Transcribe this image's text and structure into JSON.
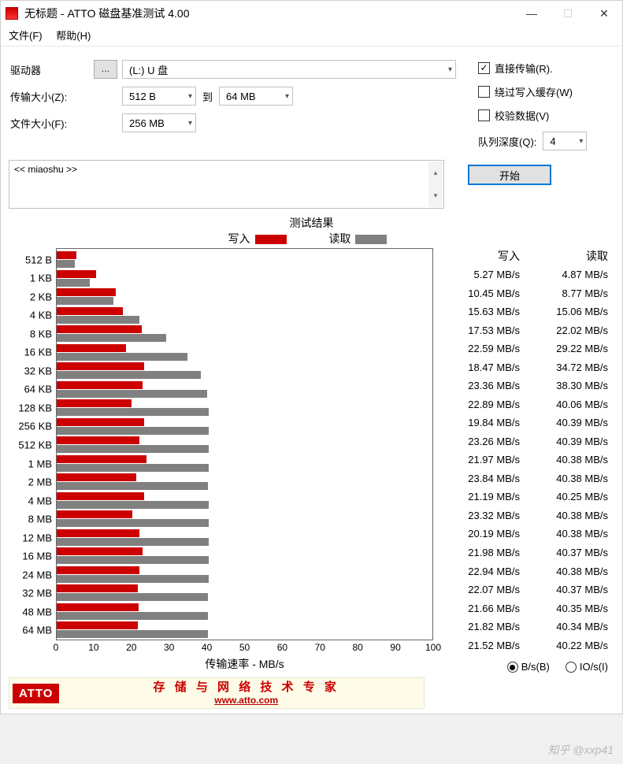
{
  "window": {
    "title": "无标题 - ATTO 磁盘基准测试 4.00"
  },
  "menu": {
    "file": "文件(F)",
    "help": "帮助(H)"
  },
  "form": {
    "drive_label": "驱动器",
    "drive_value": "(L:) U 盘",
    "transfer_label": "传输大小(Z):",
    "transfer_from": "512 B",
    "transfer_to_label": "到",
    "transfer_to": "64 MB",
    "filesize_label": "文件大小(F):",
    "filesize_value": "256 MB",
    "direct_io": "直接传输(R).",
    "bypass_cache": "绕过写入缓存(W)",
    "verify": "校验数据(V)",
    "queue_label": "队列深度(Q):",
    "queue_value": "4",
    "description": "<< miaoshu >>",
    "start_btn": "开始"
  },
  "chart": {
    "title": "测试结果",
    "legend_write": "写入",
    "legend_read": "读取",
    "write_color": "#CC0000",
    "read_color": "#808080",
    "x_label": "传输速率 - MB/s",
    "x_max": 100,
    "x_ticks": [
      0,
      10,
      20,
      30,
      40,
      50,
      60,
      70,
      80,
      90,
      100
    ],
    "rows": [
      {
        "label": "512 B",
        "write": 5.27,
        "read": 4.87
      },
      {
        "label": "1 KB",
        "write": 10.45,
        "read": 8.77
      },
      {
        "label": "2 KB",
        "write": 15.63,
        "read": 15.06
      },
      {
        "label": "4 KB",
        "write": 17.53,
        "read": 22.02
      },
      {
        "label": "8 KB",
        "write": 22.59,
        "read": 29.22
      },
      {
        "label": "16 KB",
        "write": 18.47,
        "read": 34.72
      },
      {
        "label": "32 KB",
        "write": 23.36,
        "read": 38.3
      },
      {
        "label": "64 KB",
        "write": 22.89,
        "read": 40.06
      },
      {
        "label": "128 KB",
        "write": 19.84,
        "read": 40.39
      },
      {
        "label": "256 KB",
        "write": 23.26,
        "read": 40.39
      },
      {
        "label": "512 KB",
        "write": 21.97,
        "read": 40.38
      },
      {
        "label": "1 MB",
        "write": 23.84,
        "read": 40.38
      },
      {
        "label": "2 MB",
        "write": 21.19,
        "read": 40.25
      },
      {
        "label": "4 MB",
        "write": 23.32,
        "read": 40.38
      },
      {
        "label": "8 MB",
        "write": 20.19,
        "read": 40.38
      },
      {
        "label": "12 MB",
        "write": 21.98,
        "read": 40.37
      },
      {
        "label": "16 MB",
        "write": 22.94,
        "read": 40.38
      },
      {
        "label": "24 MB",
        "write": 22.07,
        "read": 40.37
      },
      {
        "label": "32 MB",
        "write": 21.66,
        "read": 40.35
      },
      {
        "label": "48 MB",
        "write": 21.82,
        "read": 40.34
      },
      {
        "label": "64 MB",
        "write": 21.52,
        "read": 40.22
      }
    ],
    "unit": "MB/s",
    "col_write": "写入",
    "col_read": "读取",
    "radio_bs": "B/s(B)",
    "radio_ios": "IO/s(I)"
  },
  "banner": {
    "brand": "ATTO",
    "cn": "存 储 与 网 络 技 术 专 家",
    "url": "www.atto.com"
  },
  "watermark": "知乎 @xxp41"
}
